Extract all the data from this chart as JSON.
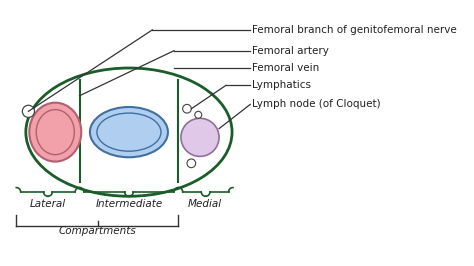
{
  "bg_color": "#ffffff",
  "outline_color": "#1a5c2a",
  "artery_fill": "#f2a0aa",
  "artery_edge": "#b06070",
  "vein_fill": "#b0cef0",
  "vein_edge": "#4070a0",
  "lymph_node_fill": "#e0c8e8",
  "lymph_node_edge": "#907098",
  "small_circle_fill": "#ffffff",
  "small_circle_edge": "#444444",
  "label_color": "#222222",
  "line_color": "#333333",
  "labels": {
    "femoral_branch": "Femoral branch of genitofemoral nerve",
    "femoral_artery": "Femoral artery",
    "femoral_vein": "Femoral vein",
    "lymphatics": "Lymphatics",
    "lymph_node": "Lymph node (of Cloquet)",
    "lateral": "Lateral",
    "intermediate": "Intermediate",
    "medial": "Medial",
    "compartments": "Compartments"
  }
}
